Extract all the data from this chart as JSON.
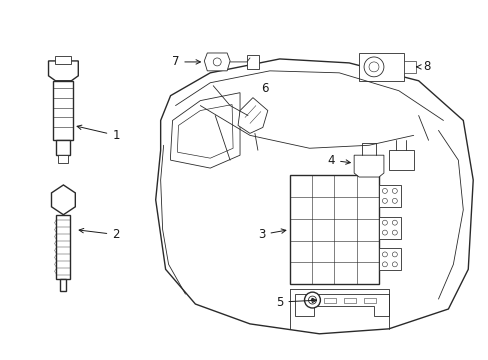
{
  "bg_color": "#ffffff",
  "line_color": "#2a2a2a",
  "label_color": "#1a1a1a",
  "font_size": 8.5,
  "figsize": [
    4.89,
    3.6
  ],
  "dpi": 100
}
